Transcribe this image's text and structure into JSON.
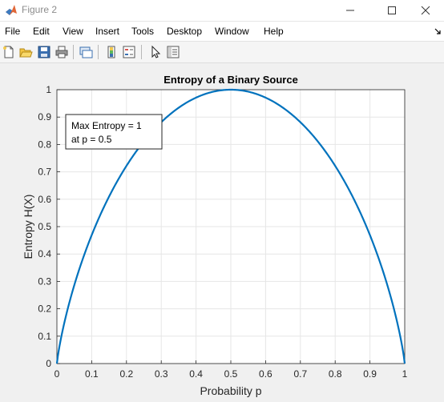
{
  "window": {
    "title": "Figure 2",
    "icon": "matlab-icon",
    "controls": [
      "minimize-icon",
      "maximize-icon",
      "close-icon"
    ]
  },
  "menu": {
    "items": [
      {
        "label": "File"
      },
      {
        "label": "Edit"
      },
      {
        "label": "View"
      },
      {
        "label": "Insert"
      },
      {
        "label": "Tools"
      },
      {
        "label": "Desktop"
      },
      {
        "label": "Window"
      },
      {
        "label": "Help"
      }
    ]
  },
  "toolbar": {
    "buttons": [
      "new-figure-icon",
      "open-file-icon",
      "save-icon",
      "print-icon",
      "link-plot-icon",
      "insert-colorbar-icon",
      "insert-legend-icon",
      "edit-plot-icon",
      "property-inspector-icon"
    ]
  },
  "colors": {
    "line": "#0072BD",
    "grid": "#e6e6e6",
    "axes": "#262626"
  },
  "chart_data": {
    "type": "line",
    "title": "Entropy of a Binary Source",
    "xlabel": "Probability p",
    "ylabel": "Entropy H(X)",
    "xlim": [
      0,
      1
    ],
    "ylim": [
      0,
      1
    ],
    "grid": true,
    "xticks": [
      "0",
      "0.1",
      "0.2",
      "0.3",
      "0.4",
      "0.5",
      "0.6",
      "0.7",
      "0.8",
      "0.9",
      "1"
    ],
    "yticks": [
      "0",
      "0.1",
      "0.2",
      "0.3",
      "0.4",
      "0.5",
      "0.6",
      "0.7",
      "0.8",
      "0.9",
      "1"
    ],
    "series": [
      {
        "function": "binary-entropy",
        "x": [
          0,
          0.01,
          0.02,
          0.05,
          0.1,
          0.15,
          0.2,
          0.25,
          0.3,
          0.35,
          0.4,
          0.45,
          0.5,
          0.55,
          0.6,
          0.65,
          0.7,
          0.75,
          0.8,
          0.85,
          0.9,
          0.95,
          0.98,
          0.99,
          1
        ],
        "y": [
          0,
          0.081,
          0.141,
          0.286,
          0.469,
          0.61,
          0.722,
          0.811,
          0.881,
          0.934,
          0.971,
          0.993,
          1,
          0.993,
          0.971,
          0.934,
          0.881,
          0.811,
          0.722,
          0.61,
          0.469,
          0.286,
          0.141,
          0.081,
          0
        ]
      }
    ],
    "annotation": {
      "lines": [
        "Max Entropy = 1",
        "at p = 0.5"
      ],
      "placement": "top-left"
    }
  }
}
